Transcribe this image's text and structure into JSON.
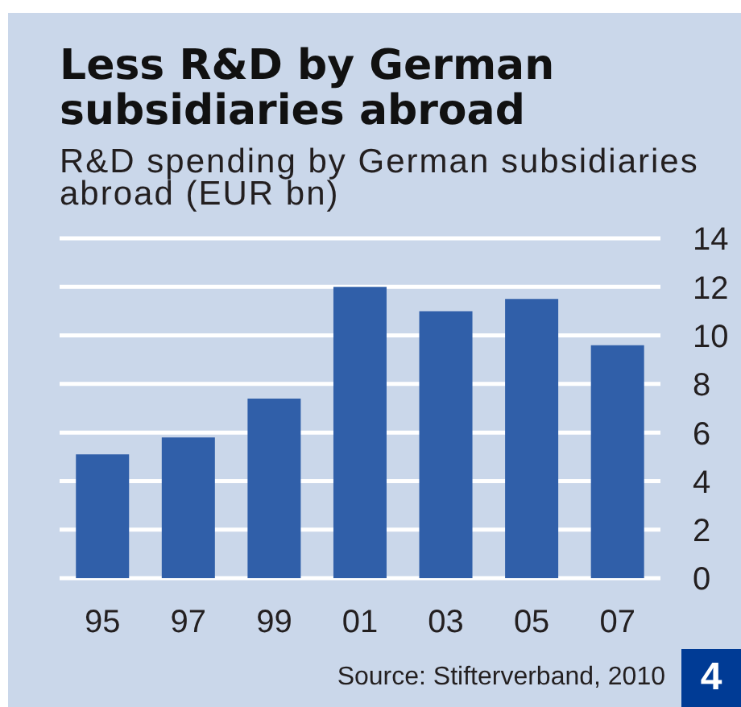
{
  "chart_data": {
    "type": "bar",
    "title": "Less R&D by German subsidiaries abroad",
    "subtitle": "R&D spending by German subsidiaries abroad (EUR bn)",
    "categories": [
      "95",
      "97",
      "99",
      "01",
      "03",
      "05",
      "07"
    ],
    "values": [
      5.1,
      5.8,
      7.4,
      12.0,
      11.0,
      11.5,
      9.6
    ],
    "color": "#305fa9",
    "ylim": [
      0,
      14
    ],
    "yticks": [
      0,
      2,
      4,
      6,
      8,
      10,
      12,
      14
    ],
    "grid": "y",
    "annotations": [
      "Source: Stifterverband, 2010",
      "4"
    ]
  }
}
